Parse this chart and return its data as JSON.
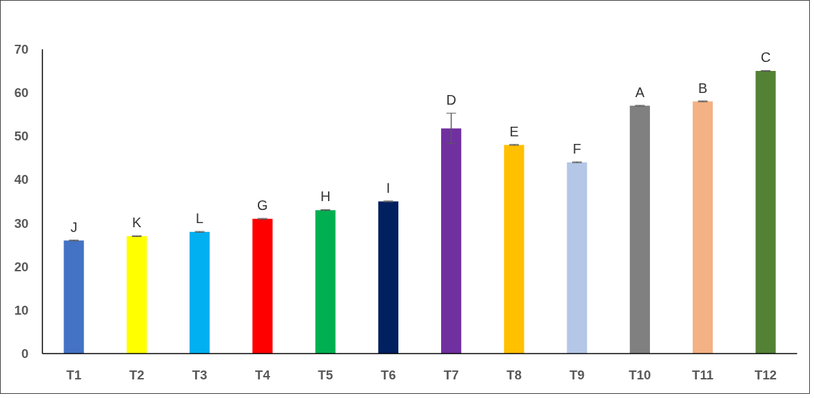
{
  "chart_data": {
    "type": "bar",
    "categories": [
      "T1",
      "T2",
      "T3",
      "T4",
      "T5",
      "T6",
      "T7",
      "T8",
      "T9",
      "T10",
      "T11",
      "T12"
    ],
    "values": [
      26,
      27,
      28,
      31,
      33,
      35,
      51.8,
      48,
      44,
      57,
      58,
      65
    ],
    "colors": [
      "#4472c4",
      "#ffff00",
      "#00b0f0",
      "#ff0000",
      "#00b050",
      "#002060",
      "#7030a0",
      "#ffc000",
      "#b4c7e7",
      "#808080",
      "#f4b183",
      "#548235"
    ],
    "errors": [
      0.1,
      0.1,
      0.1,
      0.1,
      0.1,
      0.1,
      3.5,
      0.1,
      0.1,
      0.1,
      0.1,
      0.1
    ],
    "ylim": [
      0,
      70
    ],
    "yticks": [
      0,
      10,
      20,
      30,
      40,
      50,
      60,
      70
    ],
    "grid": false,
    "annotations": [
      {
        "text": "J",
        "x": "T1",
        "y": 26
      },
      {
        "text": "K",
        "x": "T2",
        "y": 27
      },
      {
        "text": "L",
        "x": "T3",
        "y": 28
      },
      {
        "text": "G",
        "x": "T4",
        "y": 31
      },
      {
        "text": "H",
        "x": "T5",
        "y": 33
      },
      {
        "text": "I",
        "x": "T6",
        "y": 35
      },
      {
        "text": "D",
        "x": "T7",
        "y": 51.8
      },
      {
        "text": "E",
        "x": "T8",
        "y": 48
      },
      {
        "text": "F",
        "x": "T9",
        "y": 44
      },
      {
        "text": "A",
        "x": "T10",
        "y": 57
      },
      {
        "text": "B",
        "x": "T11",
        "y": 58
      },
      {
        "text": "C",
        "x": "T12",
        "y": 65
      }
    ]
  }
}
